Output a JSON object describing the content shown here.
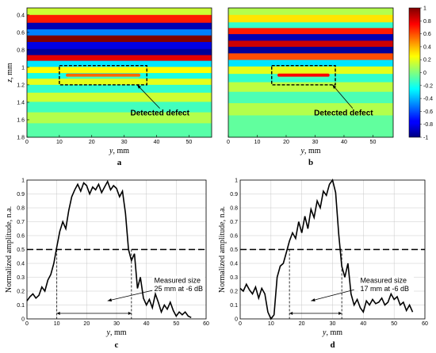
{
  "chart_data": [
    {
      "panel": "a",
      "type": "heatmap",
      "xlabel_var": "y",
      "xlabel_unit": ", mm",
      "ylabel_var": "z",
      "ylabel_unit": ", mm",
      "xlim": [
        0,
        57
      ],
      "ylim": [
        0.32,
        1.8
      ],
      "x_ticks": [
        0,
        10,
        20,
        30,
        40,
        50
      ],
      "y_ticks": [
        0.4,
        0.6,
        0.8,
        1,
        1.2,
        1.4,
        1.6,
        1.8
      ],
      "y_inverted": true,
      "bands": [
        {
          "z": 0.35,
          "value": 0.15
        },
        {
          "z": 0.45,
          "value": 0.7
        },
        {
          "z": 0.53,
          "value": -0.9
        },
        {
          "z": 0.6,
          "value": -0.5
        },
        {
          "z": 0.67,
          "value": 1.0
        },
        {
          "z": 0.75,
          "value": -0.8
        },
        {
          "z": 0.83,
          "value": -0.95
        },
        {
          "z": 0.89,
          "value": 0.8
        },
        {
          "z": 0.96,
          "value": -0.3
        },
        {
          "z": 1.03,
          "value": 0.25
        },
        {
          "z": 1.1,
          "value": -0.2
        },
        {
          "z": 1.16,
          "value": 0.2
        },
        {
          "z": 1.24,
          "value": -0.15
        },
        {
          "z": 1.34,
          "value": 0.15
        },
        {
          "z": 1.45,
          "value": -0.12
        },
        {
          "z": 1.58,
          "value": 0.1
        },
        {
          "z": 1.7,
          "value": -0.08
        }
      ],
      "defect_box": {
        "x": [
          10,
          37
        ],
        "z": [
          0.98,
          1.2
        ]
      },
      "defect_band": {
        "x": [
          12,
          35
        ],
        "z": 1.09,
        "value": 0.55
      },
      "annotation": "Detected defect",
      "annotation_pointer": {
        "from": [
          41,
          1.47
        ],
        "to": [
          34,
          1.2
        ]
      }
    },
    {
      "panel": "b",
      "type": "heatmap",
      "xlabel_var": "y",
      "xlabel_unit": ", mm",
      "xlim": [
        0,
        57
      ],
      "ylim": [
        0.32,
        1.8
      ],
      "x_ticks": [
        0,
        10,
        20,
        30,
        40,
        50
      ],
      "y_inverted": true,
      "bands": [
        {
          "z": 0.35,
          "value": 0.1
        },
        {
          "z": 0.45,
          "value": 0.3
        },
        {
          "z": 0.52,
          "value": -0.15
        },
        {
          "z": 0.58,
          "value": 0.7
        },
        {
          "z": 0.66,
          "value": -0.9
        },
        {
          "z": 0.73,
          "value": 0.85
        },
        {
          "z": 0.8,
          "value": -0.95
        },
        {
          "z": 0.88,
          "value": 0.6
        },
        {
          "z": 0.95,
          "value": -0.3
        },
        {
          "z": 1.03,
          "value": 0.2
        },
        {
          "z": 1.12,
          "value": -0.15
        },
        {
          "z": 1.22,
          "value": 0.12
        },
        {
          "z": 1.34,
          "value": -0.1
        },
        {
          "z": 1.48,
          "value": 0.1
        },
        {
          "z": 1.62,
          "value": -0.06
        }
      ],
      "defect_box": {
        "x": [
          15,
          37
        ],
        "z": [
          0.98,
          1.2
        ]
      },
      "defect_band": {
        "x": [
          17,
          35
        ],
        "z": 1.09,
        "value": 0.75
      },
      "annotation": "Detected defect",
      "annotation_pointer": {
        "from": [
          43,
          1.47
        ],
        "to": [
          36,
          1.2
        ]
      }
    },
    {
      "panel": "colorbar",
      "type": "colorbar",
      "range": [
        -1,
        1
      ],
      "ticks": [
        -1,
        -0.8,
        -0.6,
        -0.4,
        -0.2,
        0,
        0.2,
        0.4,
        0.6,
        0.8,
        1
      ]
    },
    {
      "panel": "c",
      "type": "line",
      "xlabel_var": "y",
      "xlabel_unit": ", mm",
      "ylabel": "Normalized amplitude, n.a.",
      "xlim": [
        0,
        60
      ],
      "ylim": [
        0,
        1
      ],
      "x_ticks": [
        0,
        10,
        20,
        30,
        40,
        50,
        60
      ],
      "y_ticks": [
        0,
        0.1,
        0.2,
        0.3,
        0.4,
        0.5,
        0.6,
        0.7,
        0.8,
        0.9,
        1
      ],
      "grid": true,
      "threshold": 0.5,
      "x": [
        0,
        1,
        2,
        3,
        4,
        5,
        6,
        7,
        8,
        9,
        10,
        11,
        12,
        13,
        14,
        15,
        16,
        17,
        18,
        19,
        20,
        21,
        22,
        23,
        24,
        25,
        26,
        27,
        28,
        29,
        30,
        31,
        32,
        33,
        34,
        35,
        36,
        37,
        38,
        39,
        40,
        41,
        42,
        43,
        44,
        45,
        46,
        47,
        48,
        49,
        50,
        51,
        52,
        53,
        54,
        55
      ],
      "y": [
        0.13,
        0.16,
        0.18,
        0.15,
        0.17,
        0.23,
        0.2,
        0.28,
        0.32,
        0.4,
        0.52,
        0.63,
        0.7,
        0.65,
        0.78,
        0.88,
        0.93,
        0.97,
        0.92,
        0.98,
        0.96,
        0.9,
        0.95,
        0.93,
        0.97,
        0.91,
        0.95,
        0.99,
        0.93,
        0.96,
        0.94,
        0.88,
        0.92,
        0.76,
        0.5,
        0.42,
        0.47,
        0.22,
        0.3,
        0.15,
        0.1,
        0.14,
        0.08,
        0.18,
        0.12,
        0.05,
        0.1,
        0.07,
        0.12,
        0.06,
        0.02,
        0.05,
        0.03,
        0.05,
        0.02,
        0.01
      ],
      "markers": [
        10,
        35
      ],
      "annotation_lines": [
        "Measured size",
        "25 mm at -6 dB"
      ],
      "annotation_pointer": {
        "from": [
          43,
          0.21
        ],
        "to": [
          27,
          0.13
        ]
      }
    },
    {
      "panel": "d",
      "type": "line",
      "xlabel_var": "y",
      "xlabel_unit": ", mm",
      "ylabel": "Normalized amplitude, n.a.",
      "xlim": [
        0,
        60
      ],
      "ylim": [
        0,
        1
      ],
      "x_ticks": [
        0,
        10,
        20,
        30,
        40,
        50,
        60
      ],
      "y_ticks": [
        0,
        0.1,
        0.2,
        0.3,
        0.4,
        0.5,
        0.6,
        0.7,
        0.8,
        0.9,
        1
      ],
      "grid": true,
      "threshold": 0.5,
      "x": [
        0,
        1,
        2,
        3,
        4,
        5,
        6,
        7,
        8,
        9,
        10,
        11,
        12,
        13,
        14,
        15,
        16,
        17,
        18,
        19,
        20,
        21,
        22,
        23,
        24,
        25,
        26,
        27,
        28,
        29,
        30,
        31,
        32,
        33,
        34,
        35,
        36,
        37,
        38,
        39,
        40,
        41,
        42,
        43,
        44,
        45,
        46,
        47,
        48,
        49,
        50,
        51,
        52,
        53,
        54,
        55,
        56
      ],
      "y": [
        0.22,
        0.2,
        0.25,
        0.21,
        0.18,
        0.23,
        0.15,
        0.22,
        0.18,
        0.05,
        0.0,
        0.03,
        0.3,
        0.38,
        0.4,
        0.48,
        0.56,
        0.62,
        0.58,
        0.7,
        0.62,
        0.74,
        0.65,
        0.79,
        0.73,
        0.85,
        0.8,
        0.92,
        0.89,
        0.97,
        1.0,
        0.91,
        0.61,
        0.38,
        0.3,
        0.4,
        0.18,
        0.1,
        0.14,
        0.08,
        0.05,
        0.13,
        0.1,
        0.14,
        0.11,
        0.12,
        0.15,
        0.1,
        0.12,
        0.18,
        0.14,
        0.16,
        0.1,
        0.12,
        0.06,
        0.1,
        0.05
      ],
      "markers": [
        16,
        33
      ],
      "annotation_lines": [
        "Measured size",
        "17 mm at -6 dB"
      ],
      "annotation_pointer": {
        "from": [
          37,
          0.21
        ],
        "to": [
          23,
          0.13
        ]
      }
    }
  ],
  "captions": {
    "a": "a",
    "b": "b",
    "c": "c",
    "d": "d"
  }
}
